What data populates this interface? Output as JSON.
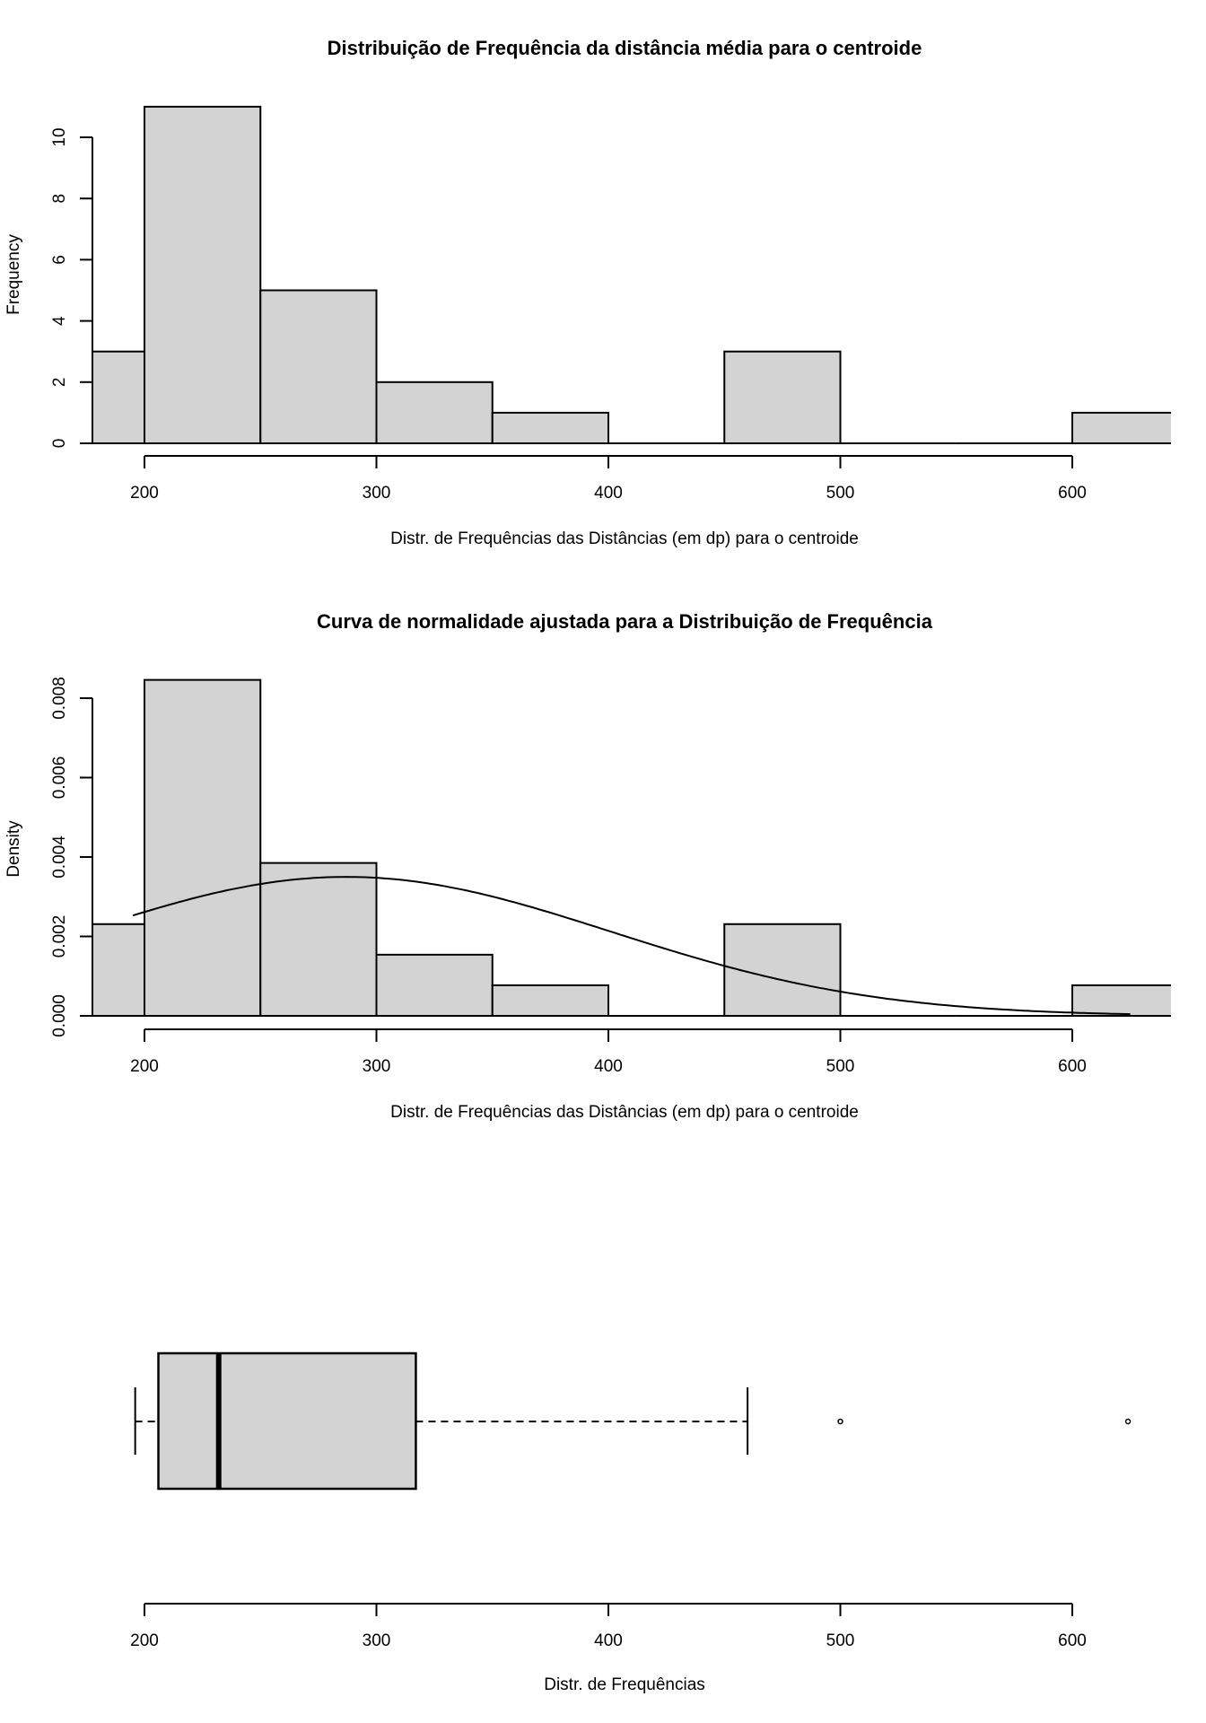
{
  "chart_data": [
    {
      "type": "bar",
      "subtype": "histogram",
      "title": "Distribuição de Frequência da distância média para o centroide",
      "xlabel": "Distr. de Frequências das Distâncias (em dp) para o centroide",
      "ylabel": "Frequency",
      "bins": [
        [
          150,
          200
        ],
        [
          200,
          250
        ],
        [
          250,
          300
        ],
        [
          300,
          350
        ],
        [
          350,
          400
        ],
        [
          400,
          450
        ],
        [
          450,
          500
        ],
        [
          500,
          550
        ],
        [
          550,
          600
        ],
        [
          600,
          650
        ]
      ],
      "values": [
        3,
        11,
        5,
        2,
        1,
        0,
        3,
        0,
        0,
        1
      ],
      "xticks": [
        "200",
        "300",
        "400",
        "500",
        "600"
      ],
      "yticks": [
        "0",
        "2",
        "4",
        "6",
        "8",
        "10"
      ],
      "grid": false,
      "bar_color": "#d3d3d3"
    },
    {
      "type": "bar",
      "subtype": "density-histogram-with-normal-curve",
      "title": "Curva de normalidade ajustada para a Distribuição de Frequência",
      "xlabel": "Distr. de Frequências das Distâncias (em dp) para o centroide",
      "ylabel": "Density",
      "bins": [
        [
          150,
          200
        ],
        [
          200,
          250
        ],
        [
          250,
          300
        ],
        [
          300,
          350
        ],
        [
          350,
          400
        ],
        [
          400,
          450
        ],
        [
          450,
          500
        ],
        [
          500,
          550
        ],
        [
          550,
          600
        ],
        [
          600,
          650
        ]
      ],
      "values": [
        0.00231,
        0.00846,
        0.00385,
        0.00154,
        0.00077,
        0,
        0.00231,
        0,
        0,
        0.00077
      ],
      "curve": {
        "type": "normal",
        "mean": 287,
        "sd": 114,
        "x_range": [
          195,
          625
        ]
      },
      "xticks": [
        "200",
        "300",
        "400",
        "500",
        "600"
      ],
      "yticks": [
        "0.000",
        "0.002",
        "0.004",
        "0.006",
        "0.008"
      ],
      "grid": false,
      "bar_color": "#d3d3d3"
    },
    {
      "type": "boxplot",
      "orientation": "horizontal",
      "xlabel": "Distr. de Frequências",
      "lower_whisker": 196,
      "q1": 206,
      "median": 232,
      "q3": 317,
      "upper_whisker": 460,
      "outliers": [
        500,
        624
      ],
      "xticks": [
        "200",
        "300",
        "400",
        "500",
        "600"
      ],
      "box_color": "#d3d3d3"
    }
  ]
}
